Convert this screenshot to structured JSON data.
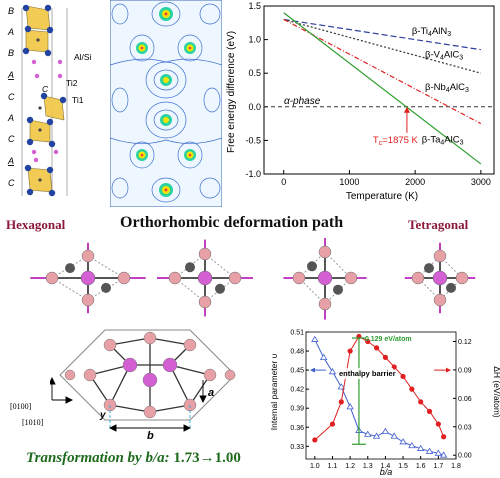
{
  "crystal_structure": {
    "stacking_labels": [
      "B",
      "A",
      "B",
      "A",
      "C",
      "A",
      "C",
      "A",
      "C"
    ],
    "site_labels": {
      "alsi": "Al/Si",
      "ti2": "Ti2",
      "ti1": "Ti1",
      "c": "C"
    }
  },
  "energy_chart": {
    "ylabel": "Free energy difference (eV)",
    "xlabel": "Temperature (K)",
    "alpha_label": "α-phase",
    "tc_label": "T",
    "tc_sub": "c",
    "tc_value": "=1875 K",
    "colors": {
      "ti4aln3": "#2d3f9e",
      "v4alc3": "#333333",
      "nb4alc3": "#e02020",
      "ta4alc3": "#2e9e2e"
    }
  },
  "chart_data": {
    "type": "line",
    "x_range": [
      -300,
      3200
    ],
    "ylim": [
      -1.0,
      1.5
    ],
    "x_ticks": [
      0,
      1000,
      2000,
      3000
    ],
    "y_ticks": [
      -1.0,
      -0.5,
      0.0,
      0.5,
      1.0,
      1.5
    ],
    "y_tick_labels": [
      "-1.0",
      "-0.5",
      "0.0",
      "0.5",
      "1.0",
      "1.5"
    ],
    "alpha_reference_y": 0.0,
    "series": [
      {
        "name": "β-Ti4AlN3",
        "x": [
          0,
          3000
        ],
        "y": [
          1.3,
          0.85
        ]
      },
      {
        "name": "β-V4AlC3",
        "x": [
          0,
          3000
        ],
        "y": [
          1.3,
          0.5
        ]
      },
      {
        "name": "β-Nb4AlC3",
        "x": [
          0,
          3000
        ],
        "y": [
          1.3,
          -0.25
        ]
      },
      {
        "name": "β-Ta4AlC3",
        "x": [
          0,
          3000
        ],
        "y": [
          1.4,
          -0.85
        ]
      }
    ],
    "tc_x": 1875
  },
  "legend_entries": [
    {
      "base": "β-Ti",
      "sub1": "4",
      "mid": "AlN",
      "sub2": "3"
    },
    {
      "base": "β-V",
      "sub1": "4",
      "mid": "AlC",
      "sub2": "3"
    },
    {
      "base": "β-Nb",
      "sub1": "4",
      "mid": "AlC",
      "sub2": "3"
    },
    {
      "base": "β-Ta",
      "sub1": "4",
      "mid": "AlC",
      "sub2": "3"
    }
  ],
  "deformation": {
    "left_label": "Hexagonal",
    "title": "Orthorhombic deformation path",
    "right_label": "Tetragonal",
    "label_color": "#8b1a3a"
  },
  "lattice": {
    "dir1": "[0100]",
    "dir2": "[1010]",
    "label_y": "y",
    "label_a": "a",
    "label_b": "b"
  },
  "transformation": {
    "prefix": "Transformation by ",
    "var": "b/a",
    "suffix": ": ",
    "value": "1.73→1.00",
    "color": "#1e6b1e"
  },
  "barrier_chart": {
    "ylabel_left": "Internal parameter υ",
    "ylabel_right": "ΔH (eV/atom)",
    "xlabel": "b/a",
    "barrier_value": "0.129 eV/atom",
    "barrier_label": "enthalpy barrier",
    "colors": {
      "internal": "#e02020",
      "enthalpy": "#4060d0",
      "barrier": "#2e9e2e"
    },
    "chart_data": {
      "type": "line",
      "x_range": [
        0.95,
        1.8
      ],
      "x_ticks": [
        1.0,
        1.1,
        1.2,
        1.3,
        1.4,
        1.5,
        1.6,
        1.7,
        1.8
      ],
      "y_left_range": [
        0.31,
        0.51
      ],
      "y_left_ticks": [
        0.33,
        0.36,
        0.39,
        0.42,
        0.45,
        0.48,
        0.51
      ],
      "y_right_range": [
        -0.004,
        0.13
      ],
      "y_right_ticks": [
        0.0,
        0.03,
        0.06,
        0.09,
        0.12
      ],
      "y_right_tick_labels": [
        "0.00",
        "0.03",
        "0.06",
        "0.09",
        "0.12"
      ],
      "series": [
        {
          "axis": "right",
          "x": [
            1.0,
            1.05,
            1.1,
            1.15,
            1.2,
            1.25,
            1.3,
            1.35,
            1.4,
            1.45,
            1.5,
            1.55,
            1.6,
            1.65,
            1.7,
            1.73
          ],
          "y": [
            0.122,
            0.103,
            0.088,
            0.072,
            0.051,
            0.026,
            0.022,
            0.02,
            0.025,
            0.02,
            0.014,
            0.01,
            0.007,
            0.004,
            0.002,
            0.0
          ]
        },
        {
          "axis": "left",
          "x": [
            1.0,
            1.1,
            1.15,
            1.2,
            1.25,
            1.3,
            1.35,
            1.4,
            1.45,
            1.5,
            1.55,
            1.6,
            1.65,
            1.7,
            1.73
          ],
          "y": [
            0.34,
            0.365,
            0.4,
            0.48,
            0.503,
            0.495,
            0.485,
            0.47,
            0.455,
            0.44,
            0.42,
            0.4,
            0.385,
            0.365,
            0.345
          ]
        }
      ],
      "barrier_x": 1.25
    }
  }
}
